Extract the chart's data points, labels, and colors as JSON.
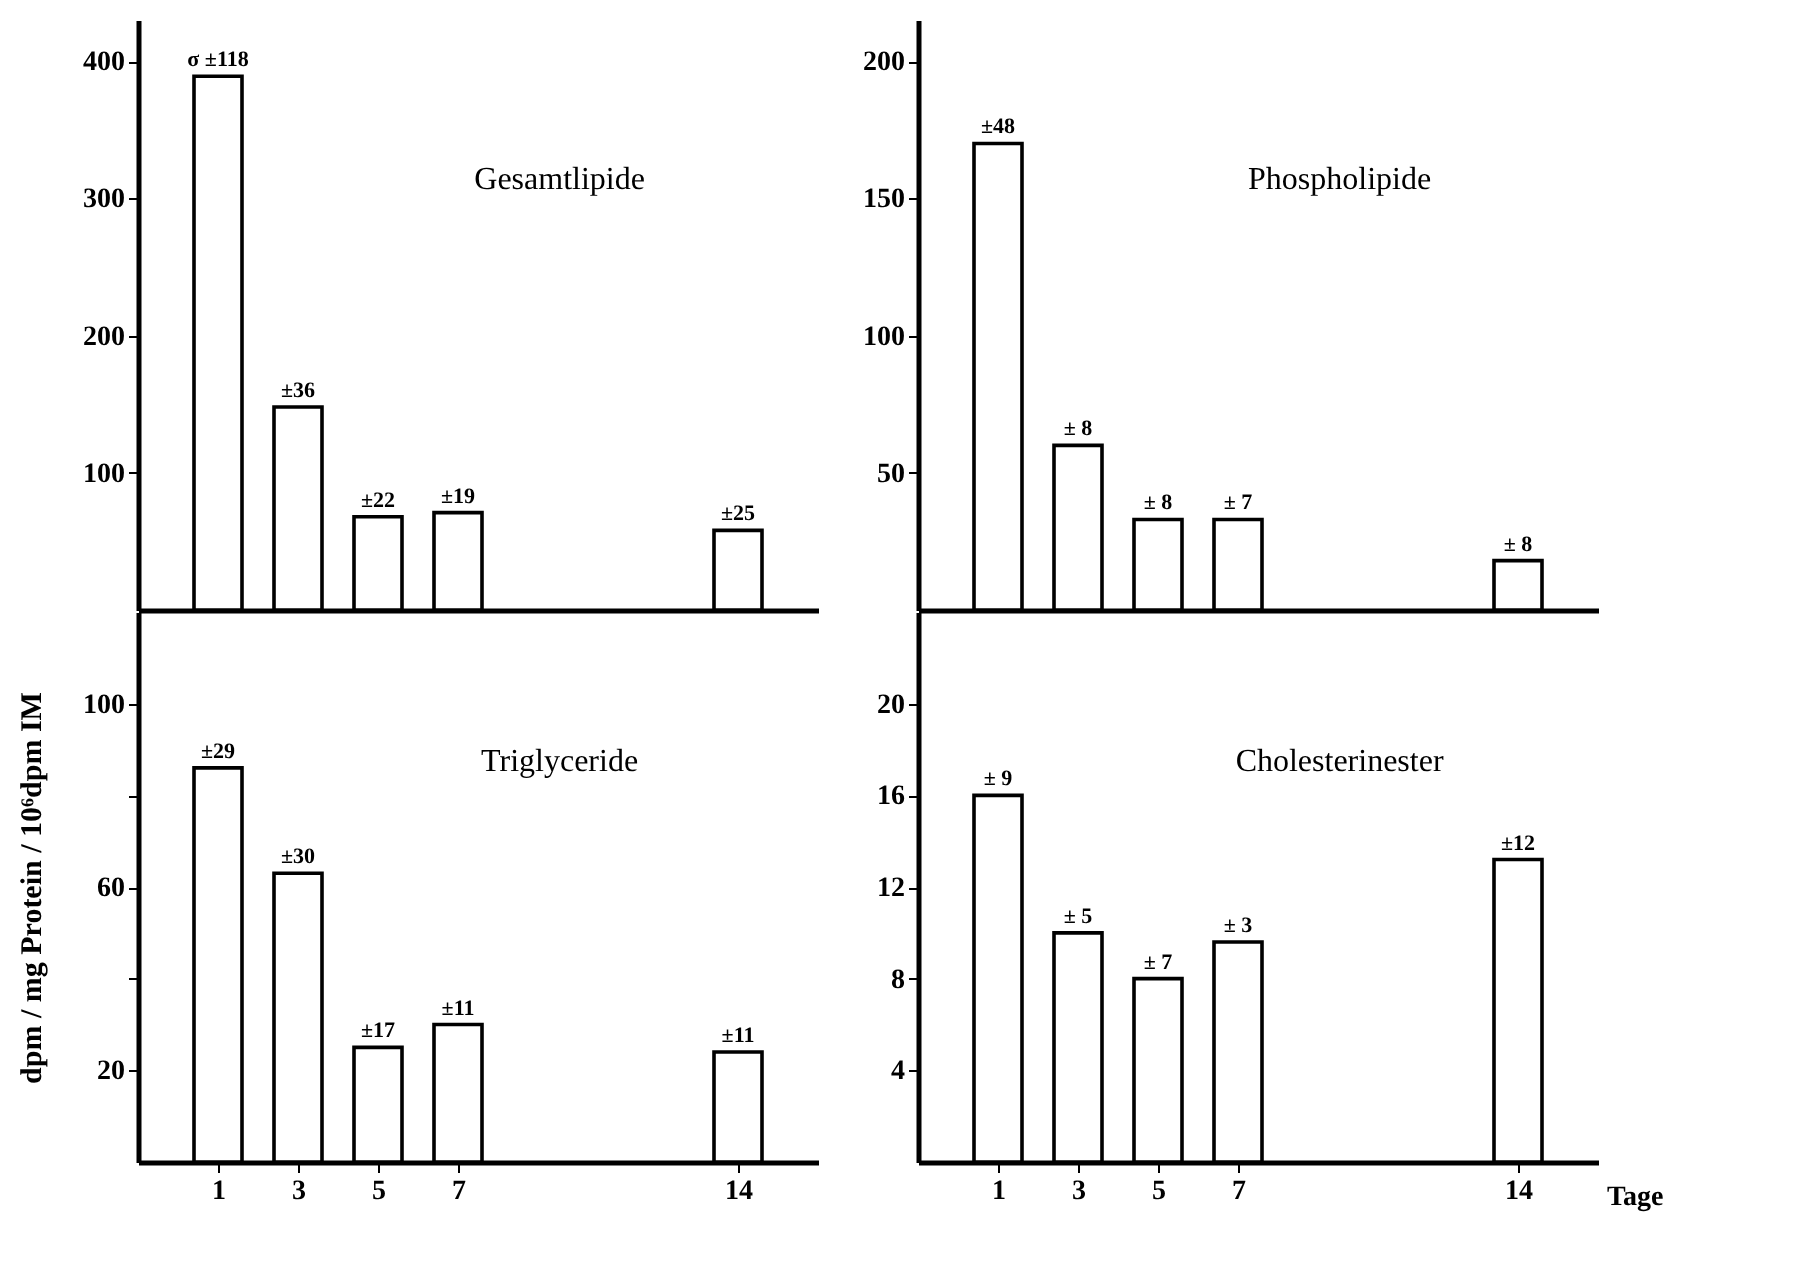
{
  "chart_data": [
    {
      "type": "bar",
      "title": "Gesamtlipide",
      "x": [
        1,
        3,
        5,
        7,
        14
      ],
      "values": [
        389,
        148,
        68,
        71,
        58
      ],
      "color": "#ffffff",
      "xlim": [
        -1,
        16
      ],
      "xticks": [
        1,
        3,
        5,
        7,
        14
      ],
      "ylim": [
        0,
        430
      ],
      "yticks": [
        100,
        200,
        300,
        400
      ],
      "tick_labels": "y",
      "annotations": [
        {
          "text": "σ ±118",
          "x": 1,
          "y": 389
        },
        {
          "text": "±36",
          "x": 3,
          "y": 148
        },
        {
          "text": "±22",
          "x": 5,
          "y": 68
        },
        {
          "text": "±19",
          "x": 7,
          "y": 71
        },
        {
          "text": "±25",
          "x": 14,
          "y": 58
        }
      ]
    },
    {
      "type": "bar",
      "title": "Phospholipide",
      "x": [
        1,
        3,
        5,
        7,
        14
      ],
      "values": [
        170,
        60,
        33,
        33,
        18
      ],
      "color": "#ffffff",
      "xlim": [
        -1,
        16
      ],
      "xticks": [
        1,
        3,
        5,
        7,
        14
      ],
      "ylim": [
        0,
        215
      ],
      "yticks": [
        50,
        100,
        150,
        200
      ],
      "tick_labels": "y",
      "annotations": [
        {
          "text": "±48",
          "x": 1,
          "y": 170
        },
        {
          "text": "± 8",
          "x": 3,
          "y": 60
        },
        {
          "text": "± 8",
          "x": 5,
          "y": 33
        },
        {
          "text": "± 7",
          "x": 7,
          "y": 33
        },
        {
          "text": "± 8",
          "x": 14,
          "y": 18
        }
      ]
    },
    {
      "type": "bar",
      "title": "Triglyceride",
      "ylabel": "dpm / mg Protein / 10⁶dpm IM",
      "x": [
        1,
        3,
        5,
        7,
        14
      ],
      "values": [
        86,
        63,
        25,
        30,
        24
      ],
      "color": "#ffffff",
      "xlim": [
        -1,
        16
      ],
      "xticks": [
        1,
        3,
        5,
        7,
        14
      ],
      "ylim": [
        0,
        120
      ],
      "yticks": [
        20,
        {
          "value": 40,
          "label": null
        },
        60,
        {
          "value": 80,
          "label": null
        },
        100
      ],
      "annotations": [
        {
          "text": "±29",
          "x": 1,
          "y": 86
        },
        {
          "text": "±30",
          "x": 3,
          "y": 63
        },
        {
          "text": "±17",
          "x": 5,
          "y": 25
        },
        {
          "text": "±11",
          "x": 7,
          "y": 30
        },
        {
          "text": "±11",
          "x": 14,
          "y": 24
        }
      ]
    },
    {
      "type": "bar",
      "title": "Cholesterinester",
      "xlabel": "Tage",
      "x": [
        1,
        3,
        5,
        7,
        14
      ],
      "values": [
        16,
        10,
        8,
        9.6,
        13.2
      ],
      "color": "#ffffff",
      "xlim": [
        -1,
        16
      ],
      "xticks": [
        1,
        3,
        5,
        7,
        14
      ],
      "ylim": [
        0,
        24
      ],
      "yticks": [
        4,
        8,
        12,
        16,
        20
      ],
      "annotations": [
        {
          "text": "± 9",
          "x": 1,
          "y": 16
        },
        {
          "text": "± 5",
          "x": 3,
          "y": 10
        },
        {
          "text": "± 7",
          "x": 5,
          "y": 8
        },
        {
          "text": "± 3",
          "x": 7,
          "y": 9.6
        },
        {
          "text": "±12",
          "x": 14,
          "y": 13.2
        }
      ]
    }
  ]
}
